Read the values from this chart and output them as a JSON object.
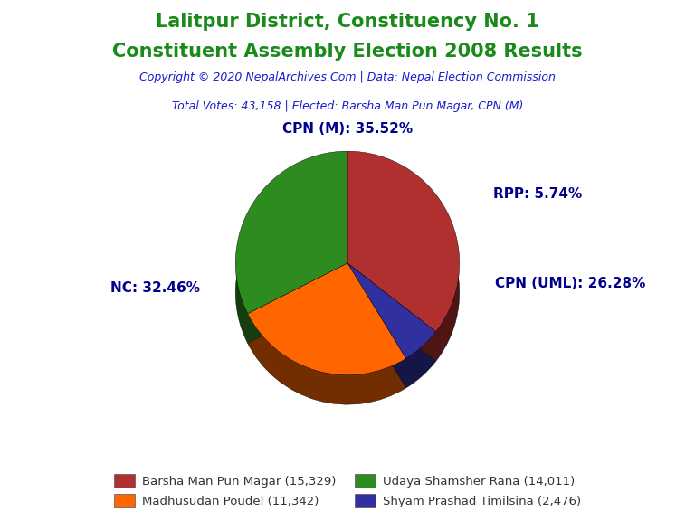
{
  "title_line1": "Lalitpur District, Constituency No. 1",
  "title_line2": "Constituent Assembly Election 2008 Results",
  "title_color": "#1a8a1a",
  "subtitle": "Copyright © 2020 NepalArchives.Com | Data: Nepal Election Commission",
  "subtitle_color": "#1a1acd",
  "info_line": "Total Votes: 43,158 | Elected: Barsha Man Pun Magar, CPN (M)",
  "info_color": "#1a1acd",
  "slices": [
    {
      "label": "CPN (M): 35.52%",
      "value": 15329,
      "color": "#B03030",
      "pct": 35.52
    },
    {
      "label": "RPP: 5.74%",
      "value": 2476,
      "color": "#3030A0",
      "pct": 5.74
    },
    {
      "label": "CPN (UML): 26.28%",
      "value": 11342,
      "color": "#FF6600",
      "pct": 26.28
    },
    {
      "label": "NC: 32.46%",
      "value": 14011,
      "color": "#2E8B20",
      "pct": 32.46
    }
  ],
  "legend_entries": [
    {
      "label": "Barsha Man Pun Magar (15,329)",
      "color": "#B03030"
    },
    {
      "label": "Madhusudan Poudel (11,342)",
      "color": "#FF6600"
    },
    {
      "label": "Udaya Shamsher Rana (14,011)",
      "color": "#2E8B20"
    },
    {
      "label": "Shyam Prashad Timilsina (2,476)",
      "color": "#3030A0"
    }
  ],
  "label_color": "#00008B",
  "label_fontsize": 11,
  "background_color": "#FFFFFF",
  "shadow_depth": 12,
  "shadow_darken": 0.45
}
